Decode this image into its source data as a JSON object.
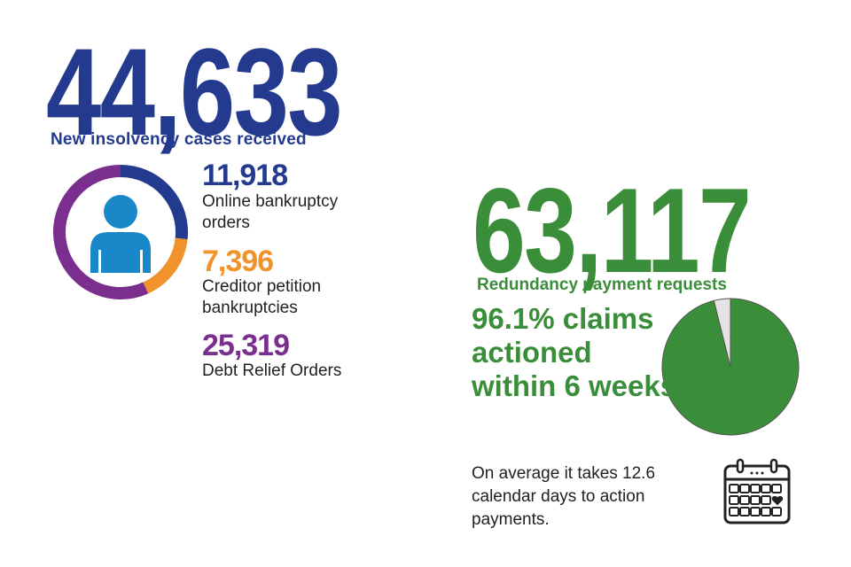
{
  "insolvency": {
    "total": "44,633",
    "caption": "New insolvency cases received",
    "color": "#233a8e",
    "breakdown": [
      {
        "value": "11,918",
        "label": "Online bankruptcy orders",
        "color": "#233a8e",
        "count": 11918
      },
      {
        "value": "7,396",
        "label": "Creditor petition bankruptcies",
        "color": "#f0932b",
        "count": 7396
      },
      {
        "value": "25,319",
        "label": "Debt Relief Orders",
        "color": "#7a2e8e",
        "count": 25319
      }
    ],
    "icon": "person-icon"
  },
  "redundancy": {
    "total": "63,117",
    "caption": "Redundancy payment requests",
    "color": "#3a8e3a",
    "claims_text": "96.1% claims actioned within 6 weeks",
    "claims_percent": 96.1,
    "average_text": "On average it takes 12.6 calendar days to action payments.",
    "icon": "calendar-icon"
  }
}
